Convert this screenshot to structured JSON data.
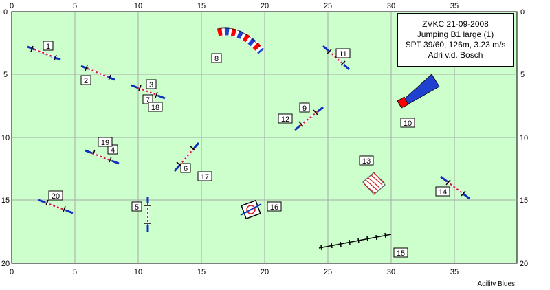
{
  "info": {
    "line1": "ZVKC 21-09-2008",
    "line2": "Jumping B1 large (1)",
    "line3": "SPT 39/60, 126m, 3.23 m/s",
    "line4": "Adri v.d. Bosch"
  },
  "footer": "Agility Blues",
  "axes": {
    "x_ticks": [
      "0",
      "5",
      "10",
      "15",
      "20",
      "25",
      "30",
      "35"
    ],
    "y_ticks": [
      "0",
      "5",
      "10",
      "15",
      "20"
    ]
  },
  "obstacle_numbers": [
    "1",
    "2",
    "3",
    "4",
    "5",
    "6",
    "7",
    "8",
    "9",
    "10",
    "11",
    "12",
    "13",
    "14",
    "15",
    "16",
    "17",
    "18",
    "19",
    "20"
  ],
  "colors": {
    "field": "#ccffcc",
    "grid": "#a8a8a8",
    "pole": "#1030c0",
    "tunnel_red": "#ff0000",
    "tunnel_blue": "#2040d0"
  }
}
